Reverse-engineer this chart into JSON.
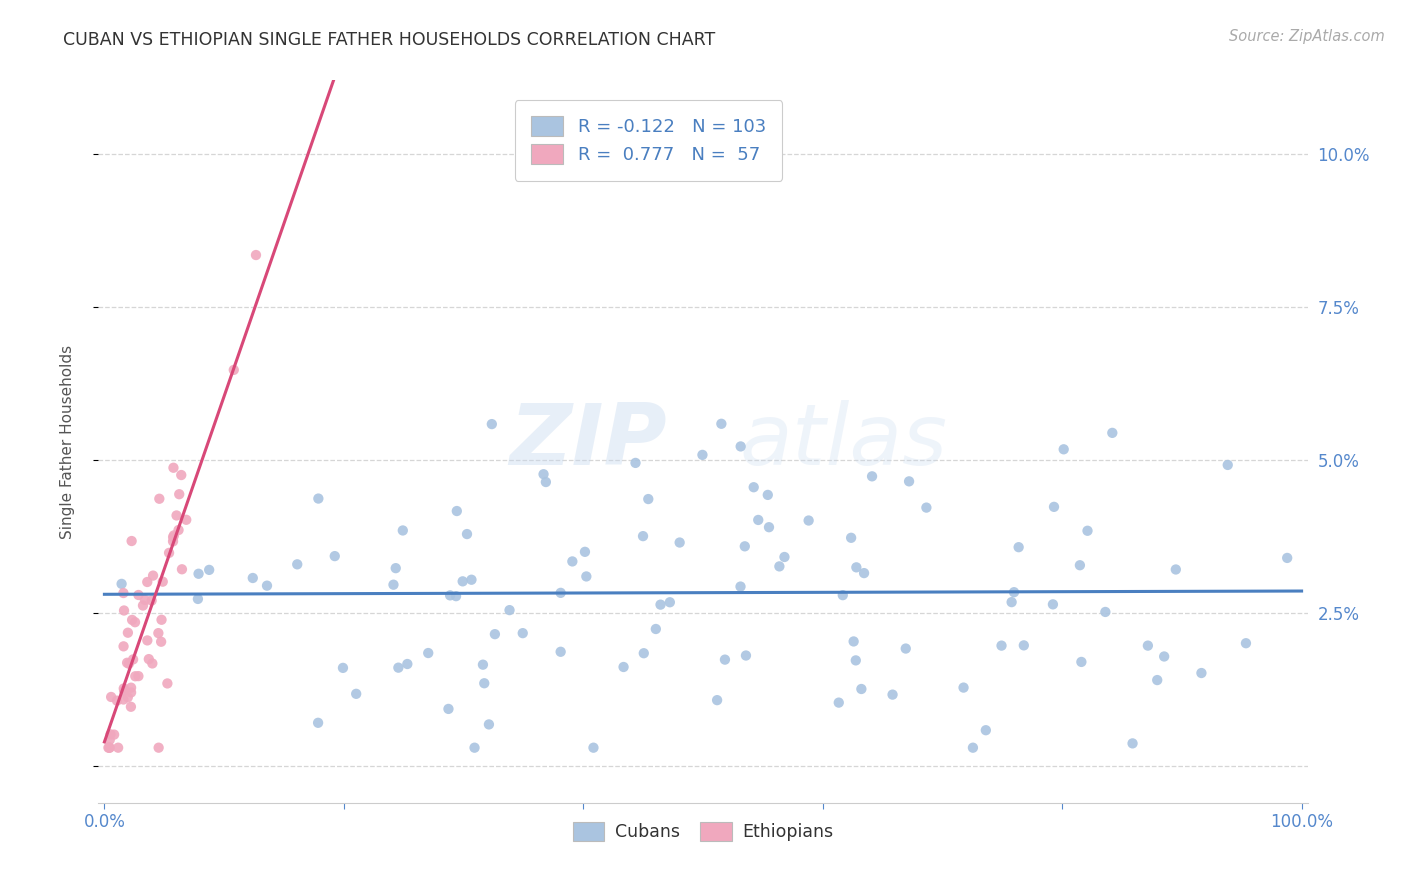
{
  "title": "CUBAN VS ETHIOPIAN SINGLE FATHER HOUSEHOLDS CORRELATION CHART",
  "source": "Source: ZipAtlas.com",
  "ylabel": "Single Father Households",
  "cuban_color": "#aac4e0",
  "ethiopian_color": "#f0a8be",
  "cuban_line_color": "#4a7fc0",
  "ethiopian_line_color": "#d84878",
  "R_cuban": -0.122,
  "N_cuban": 103,
  "R_ethiopian": 0.777,
  "N_ethiopian": 57,
  "watermark_zip": "ZIP",
  "watermark_atlas": "atlas",
  "background_color": "#ffffff",
  "grid_color": "#cccccc",
  "tick_color": "#5588cc",
  "legend_text_color": "#4a7fc0",
  "title_color": "#333333",
  "source_color": "#aaaaaa",
  "xlim": [
    -0.005,
    1.005
  ],
  "ylim": [
    -0.006,
    0.112
  ],
  "yticks": [
    0.0,
    0.025,
    0.05,
    0.075,
    0.1
  ],
  "xticks": [
    0.0,
    0.2,
    0.4,
    0.6,
    0.8,
    1.0
  ],
  "cuban_seed": 42,
  "ethiopian_seed": 7,
  "scatter_size": 55
}
